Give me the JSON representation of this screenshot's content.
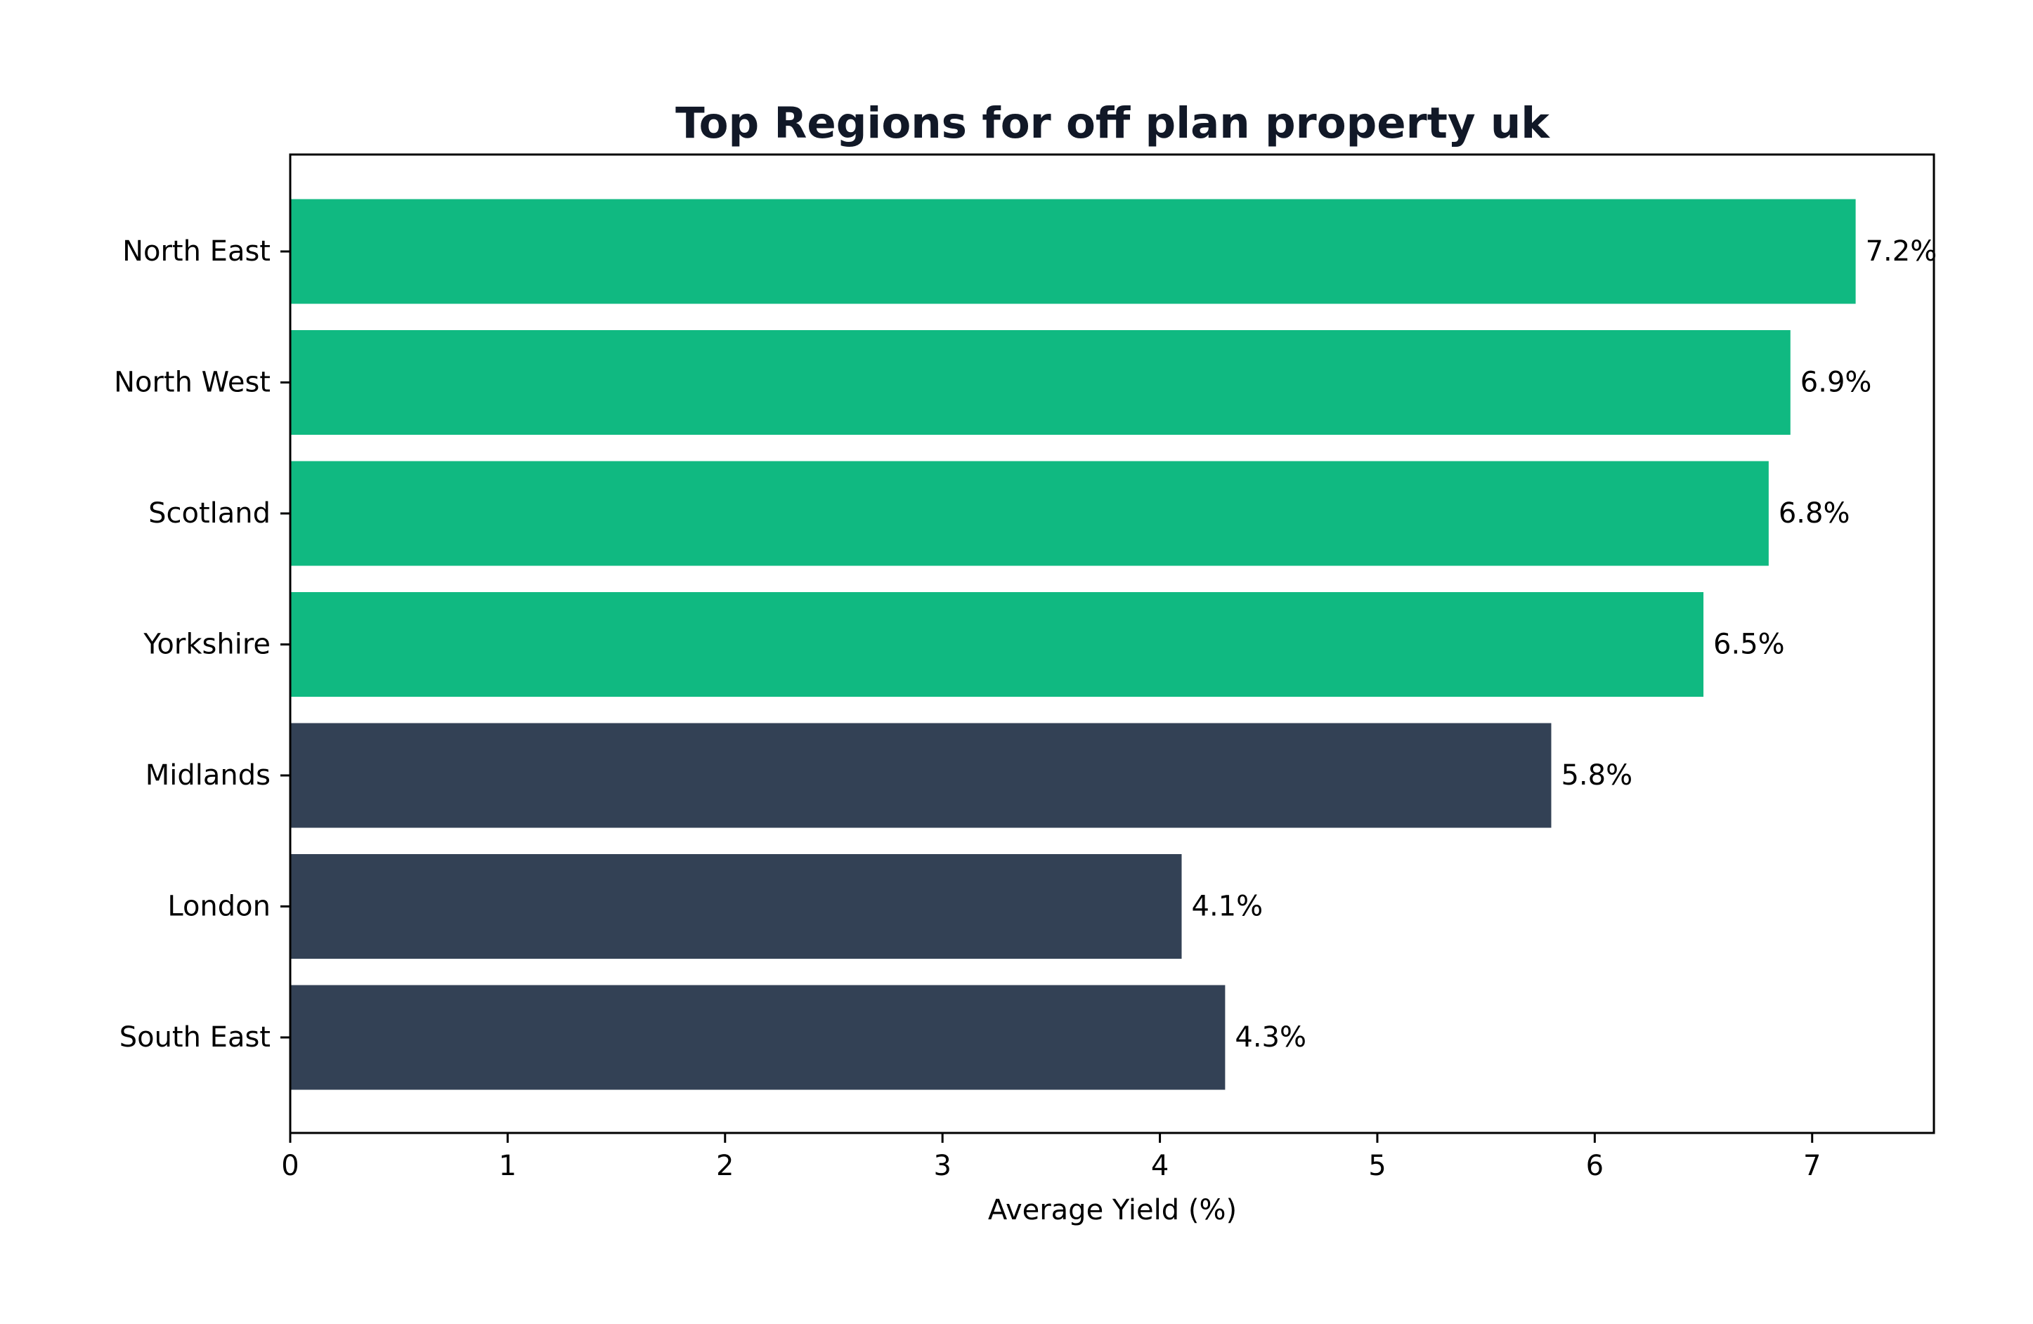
{
  "chart_data": {
    "type": "bar",
    "orientation": "horizontal",
    "title": "Top Regions for off plan property uk",
    "xlabel": "Average Yield (%)",
    "ylabel": "",
    "categories": [
      "North East",
      "North West",
      "Scotland",
      "Yorkshire",
      "Midlands",
      "London",
      "South East"
    ],
    "values": [
      7.2,
      6.9,
      6.8,
      6.5,
      5.8,
      4.1,
      4.3
    ],
    "data_labels": [
      "7.2%",
      "6.9%",
      "6.8%",
      "6.5%",
      "5.8%",
      "4.1%",
      "4.3%"
    ],
    "bar_colors": [
      "#10b981",
      "#10b981",
      "#10b981",
      "#10b981",
      "#334155",
      "#334155",
      "#334155"
    ],
    "xlim": [
      0,
      7.56
    ],
    "xticks": [
      0,
      1,
      2,
      3,
      4,
      5,
      6,
      7
    ],
    "xtick_labels": [
      "0",
      "1",
      "2",
      "3",
      "4",
      "5",
      "6",
      "7"
    ],
    "grid": false,
    "legend": "none"
  }
}
